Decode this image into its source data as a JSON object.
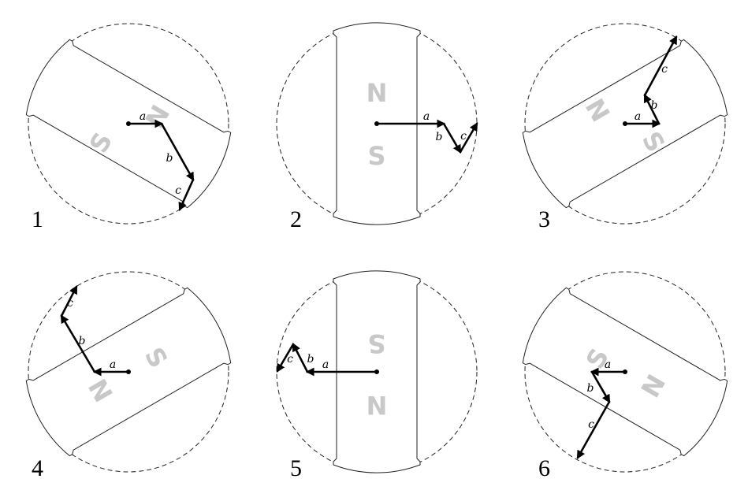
{
  "panels": [
    {
      "number": "1",
      "north_label": "N",
      "south_label": "S",
      "vector_labels": {
        "a": "a",
        "b": "b",
        "c": "c"
      }
    },
    {
      "number": "2",
      "north_label": "N",
      "south_label": "S",
      "vector_labels": {
        "a": "a",
        "b": "b",
        "c": "c"
      }
    },
    {
      "number": "3",
      "north_label": "N",
      "south_label": "S",
      "vector_labels": {
        "a": "a",
        "b": "b",
        "c": "c"
      }
    },
    {
      "number": "4",
      "north_label": "N",
      "south_label": "S",
      "vector_labels": {
        "a": "a",
        "b": "b",
        "c": "c"
      }
    },
    {
      "number": "5",
      "north_label": "N",
      "south_label": "S",
      "vector_labels": {
        "a": "a",
        "b": "b",
        "c": "c"
      }
    },
    {
      "number": "6",
      "north_label": "N",
      "south_label": "S",
      "vector_labels": {
        "a": "a",
        "b": "b",
        "c": "c"
      }
    }
  ]
}
